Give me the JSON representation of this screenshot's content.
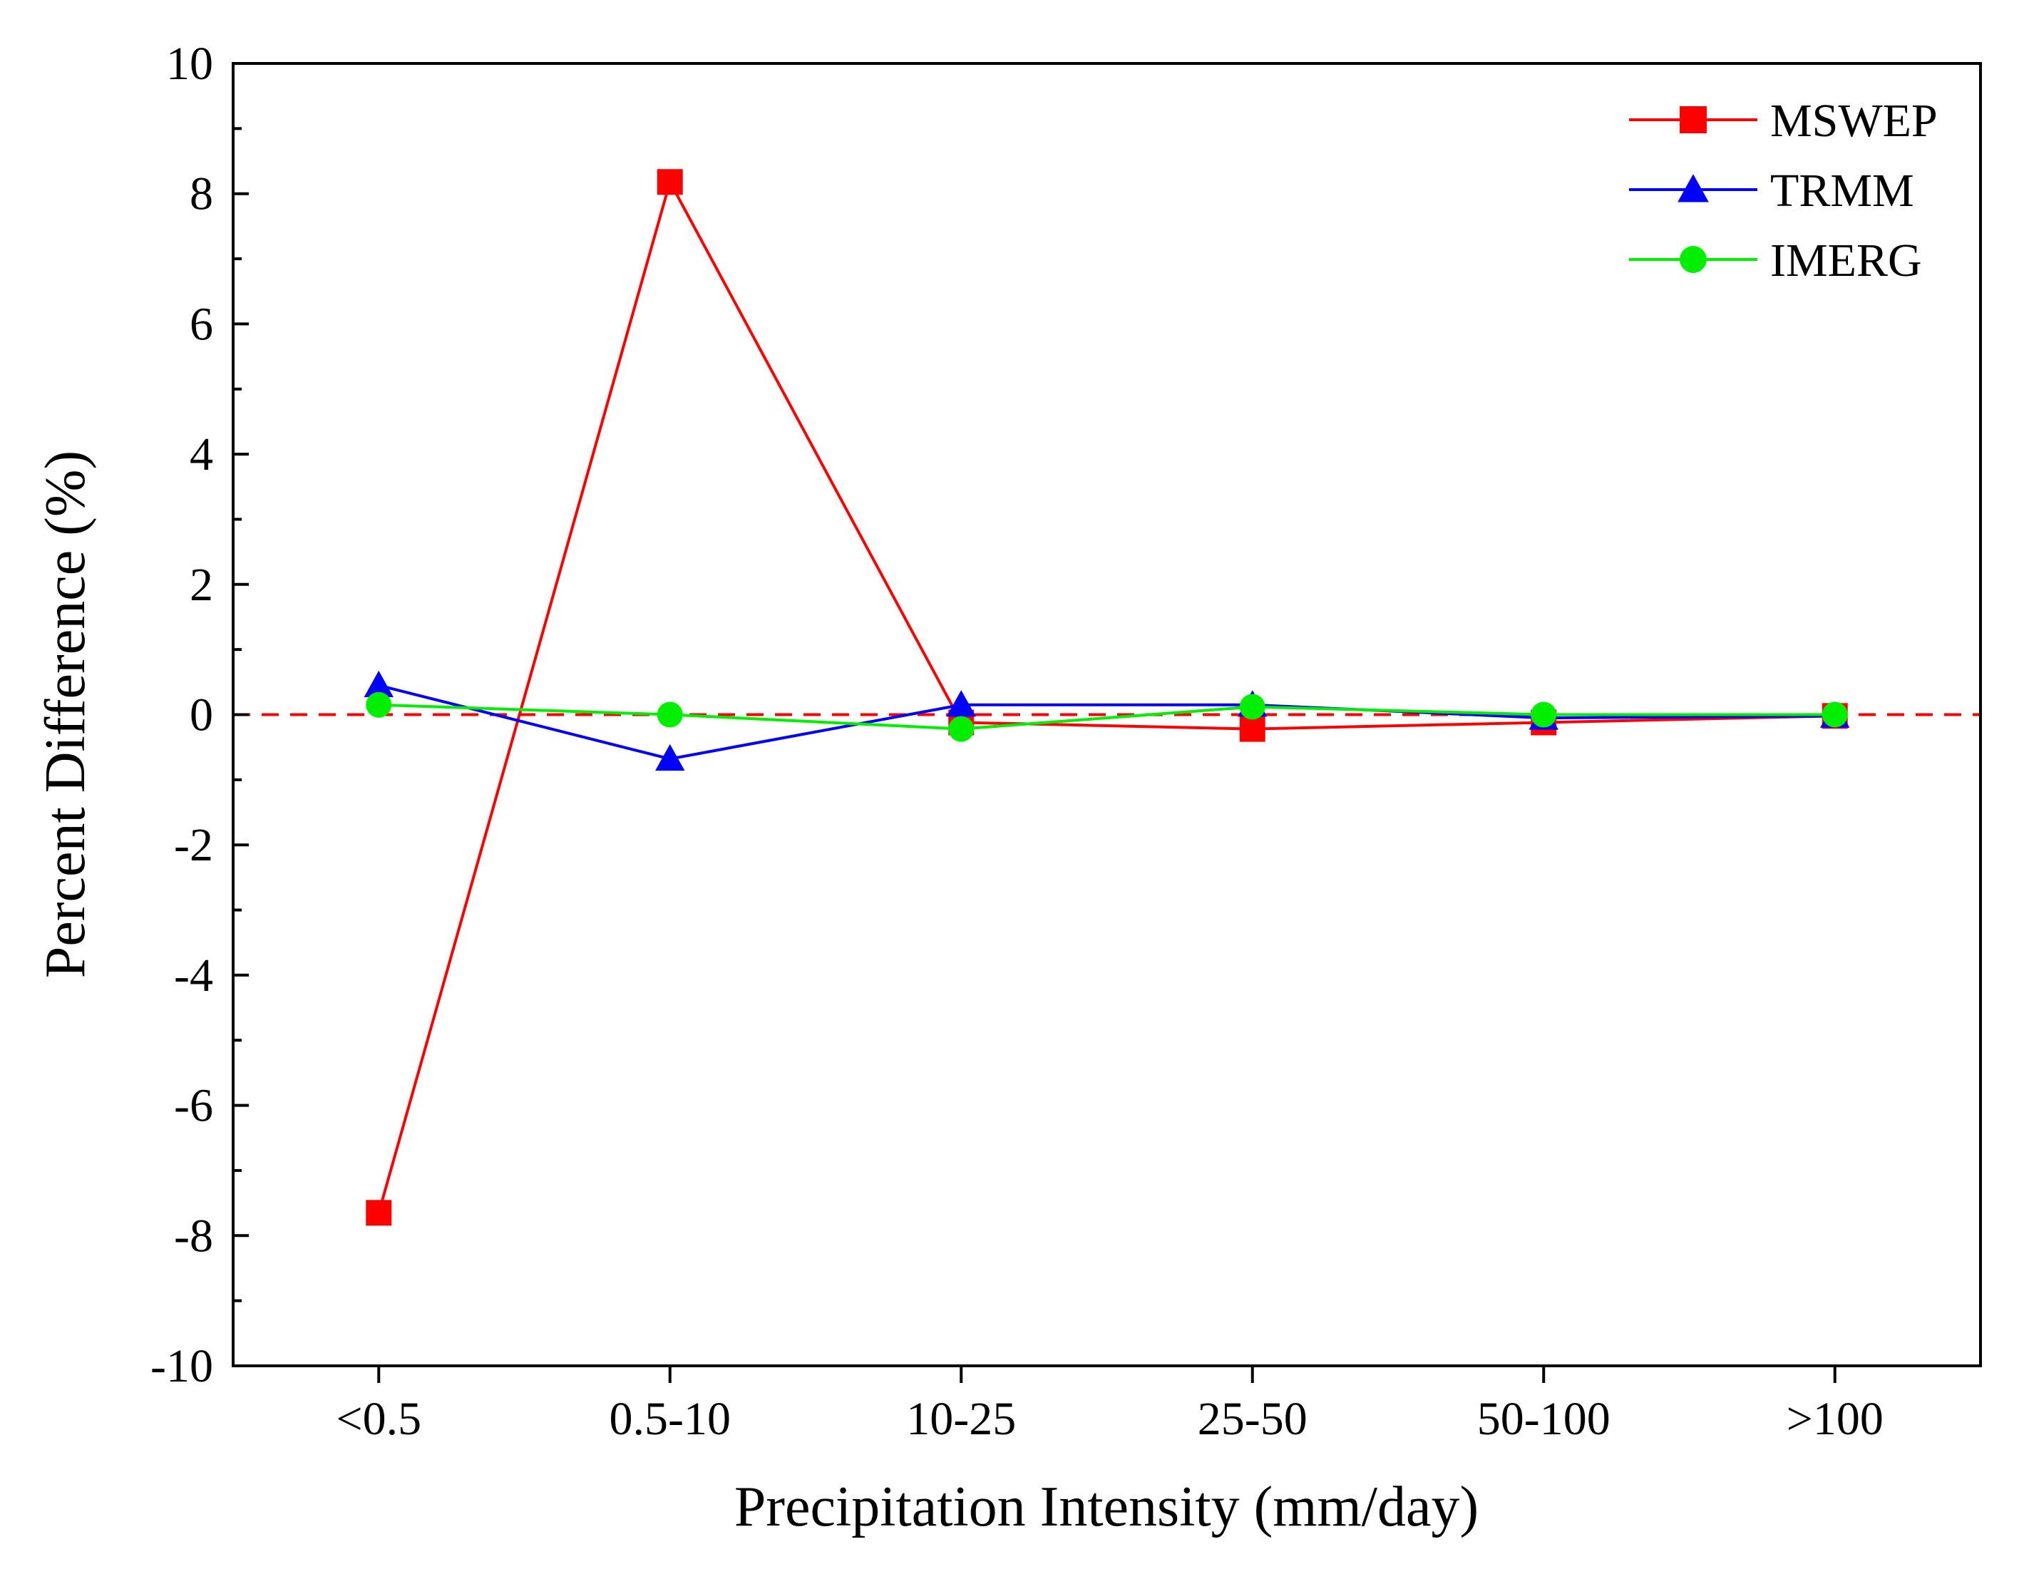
{
  "chart_data": {
    "type": "line",
    "title": "",
    "xlabel": "Precipitation Intensity (mm/day)",
    "ylabel": "Percent Difference (%)",
    "categories": [
      "<0.5",
      "0.5-10",
      "10-25",
      "25-50",
      "50-100",
      ">100"
    ],
    "ylim": [
      -10,
      10
    ],
    "yticks": [
      -10,
      -8,
      -6,
      -4,
      -2,
      0,
      2,
      4,
      6,
      8,
      10
    ],
    "reference_line": {
      "value": 0,
      "style": "dashed",
      "color": "#ff0000"
    },
    "legend_position": "top-right",
    "grid": false,
    "series": [
      {
        "name": "MSWEP",
        "color": "#ff0000",
        "marker": "square",
        "values": [
          -7.65,
          8.18,
          -0.12,
          -0.22,
          -0.12,
          -0.02
        ]
      },
      {
        "name": "TRMM",
        "color": "#0000ff",
        "marker": "triangle",
        "values": [
          0.45,
          -0.68,
          0.15,
          0.15,
          -0.05,
          -0.02
        ]
      },
      {
        "name": "IMERG",
        "color": "#00ee00",
        "marker": "circle",
        "values": [
          0.15,
          0.0,
          -0.22,
          0.12,
          0.0,
          0.0
        ]
      }
    ]
  }
}
